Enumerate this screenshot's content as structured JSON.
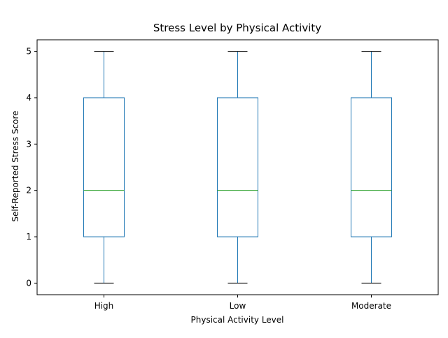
{
  "chart_data": {
    "type": "box",
    "title": "Stress Level by Physical Activity",
    "xlabel": "Physical Activity Level",
    "ylabel": "Self-Reported Stress Score",
    "categories": [
      "High",
      "Low",
      "Moderate"
    ],
    "boxes": [
      {
        "category": "High",
        "whisker_low": 0,
        "q1": 1,
        "median": 2,
        "q3": 4,
        "whisker_high": 5
      },
      {
        "category": "Low",
        "whisker_low": 0,
        "q1": 1,
        "median": 2,
        "q3": 4,
        "whisker_high": 5
      },
      {
        "category": "Moderate",
        "whisker_low": 0,
        "q1": 1,
        "median": 2,
        "q3": 4,
        "whisker_high": 5
      }
    ],
    "ylim": [
      -0.25,
      5.25
    ],
    "yticks": [
      0,
      1,
      2,
      3,
      4,
      5
    ],
    "grid": false,
    "colors": {
      "box": "#1f77b4",
      "whisker": "#1f77b4",
      "cap": "#000000",
      "median": "#2ca02c",
      "axis": "#000000"
    }
  }
}
